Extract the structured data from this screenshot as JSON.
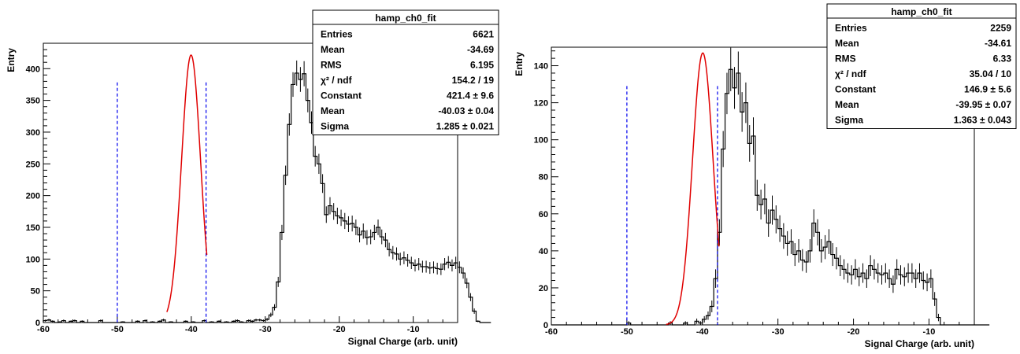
{
  "chart_data": [
    {
      "type": "bar",
      "xlabel": "Signal Charge (arb. unit)",
      "ylabel": "Entry",
      "xlim": [
        -60,
        -4
      ],
      "ylim": [
        0,
        440
      ],
      "xticks": [
        -60,
        -50,
        -40,
        -30,
        -20,
        -10
      ],
      "yticks": [
        0,
        50,
        100,
        150,
        200,
        250,
        300,
        350,
        400
      ],
      "grid": false,
      "bin_width": 0.5,
      "x_start": -60,
      "values": [
        3,
        4,
        2,
        0,
        1,
        3,
        0,
        2,
        3,
        0,
        2,
        0,
        0,
        0,
        0,
        3,
        0,
        0,
        0,
        0,
        0,
        1,
        0,
        0,
        0,
        2,
        0,
        3,
        0,
        1,
        0,
        2,
        4,
        0,
        1,
        0,
        0,
        0,
        2,
        0,
        1,
        0,
        0,
        3,
        0,
        1,
        0,
        2,
        0,
        1,
        0,
        2,
        3,
        1,
        0,
        3,
        2,
        4,
        4,
        3,
        5,
        12,
        24,
        64,
        142,
        232,
        312,
        375,
        393,
        383,
        392,
        350,
        315,
        262,
        250,
        219,
        170,
        184,
        175,
        168,
        165,
        160,
        155,
        156,
        150,
        138,
        144,
        134,
        135,
        142,
        150,
        135,
        130,
        115,
        110,
        108,
        100,
        102,
        98,
        94,
        90,
        92,
        88,
        88,
        86,
        87,
        85,
        84,
        92,
        95,
        90,
        94,
        87,
        78,
        62,
        40,
        18,
        2,
        0,
        0,
        0
      ],
      "fit": {
        "type": "gauss",
        "constant": 421.4,
        "mean": -40.03,
        "sigma": 1.285,
        "range": [
          -43.3,
          -37.9
        ]
      },
      "range_lines": [
        -50,
        -38
      ],
      "stats": {
        "title": "hamp_ch0_fit",
        "rows": [
          {
            "label": "Entries",
            "value": "6621"
          },
          {
            "label": "Mean",
            "value": "-34.69"
          },
          {
            "label": "RMS",
            "value": "6.195"
          },
          {
            "label": "χ² / ndf",
            "value": "154.2 / 19"
          },
          {
            "label": "Constant",
            "value": "421.4 ± 9.6"
          },
          {
            "label": "Mean",
            "value": "-40.03 ± 0.04"
          },
          {
            "label": "Sigma",
            "value": "1.285 ± 0.021"
          }
        ]
      }
    },
    {
      "type": "bar",
      "xlabel": "Signal Charge (arb. unit)",
      "ylabel": "Entry",
      "xlim": [
        -60,
        -4
      ],
      "ylim": [
        0,
        150
      ],
      "xticks": [
        -60,
        -50,
        -40,
        -30,
        -20,
        -10
      ],
      "yticks": [
        0,
        20,
        40,
        60,
        80,
        100,
        120,
        140
      ],
      "grid": false,
      "bin_width": 0.5,
      "x_start": -60,
      "values": [
        0,
        0,
        0,
        0,
        0,
        0,
        0,
        0,
        0,
        0,
        0,
        0,
        0,
        0,
        0,
        0,
        0,
        0,
        0,
        0,
        1,
        0,
        0,
        0,
        0,
        0,
        0,
        0,
        0,
        0,
        0,
        1,
        0,
        0,
        0,
        1,
        0,
        0,
        2,
        1,
        3,
        5,
        10,
        25,
        50,
        95,
        125,
        138,
        128,
        136,
        115,
        120,
        98,
        102,
        70,
        65,
        68,
        55,
        62,
        57,
        52,
        48,
        44,
        45,
        38,
        40,
        35,
        34,
        40,
        55,
        50,
        40,
        42,
        45,
        38,
        36,
        32,
        30,
        28,
        27,
        30,
        26,
        28,
        25,
        32,
        30,
        28,
        27,
        28,
        25,
        22,
        30,
        27,
        26,
        28,
        28,
        25,
        28,
        24,
        23,
        25,
        14,
        4,
        0,
        0,
        0,
        0,
        0,
        0,
        0,
        0,
        0,
        0,
        0,
        0,
        0
      ],
      "fit": {
        "type": "gauss",
        "constant": 146.9,
        "mean": -39.95,
        "sigma": 1.363,
        "range": [
          -44.8,
          -37.8
        ]
      },
      "range_lines": [
        -50,
        -38
      ],
      "stats": {
        "title": "hamp_ch0_fit",
        "rows": [
          {
            "label": "Entries",
            "value": "2259"
          },
          {
            "label": "Mean",
            "value": "-34.61"
          },
          {
            "label": "RMS",
            "value": "6.33"
          },
          {
            "label": "χ² / ndf",
            "value": "35.04 / 10"
          },
          {
            "label": "Constant",
            "value": "146.9 ± 5.6"
          },
          {
            "label": "Mean",
            "value": "-39.95 ± 0.07"
          },
          {
            "label": "Sigma",
            "value": "1.363 ± 0.043"
          }
        ]
      }
    }
  ]
}
